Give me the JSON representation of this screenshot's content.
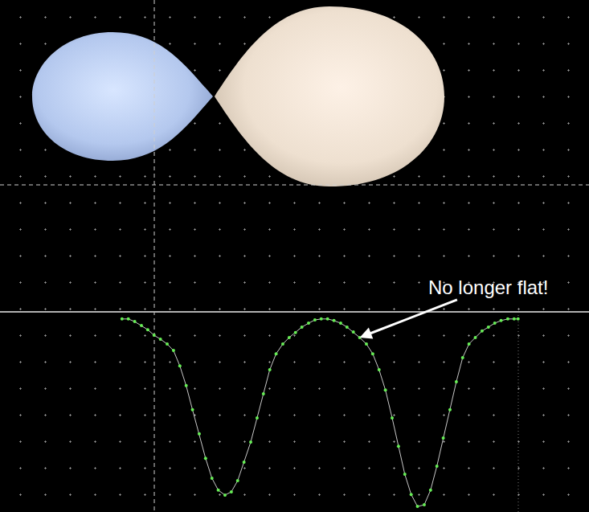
{
  "chart_data": {
    "type": "line",
    "x": [
      0,
      0.016,
      0.032,
      0.049,
      0.065,
      0.081,
      0.097,
      0.114,
      0.13,
      0.146,
      0.162,
      0.178,
      0.195,
      0.211,
      0.227,
      0.243,
      0.26,
      0.276,
      0.292,
      0.308,
      0.325,
      0.341,
      0.357,
      0.373,
      0.389,
      0.406,
      0.422,
      0.438,
      0.454,
      0.471,
      0.487,
      0.503,
      0.519,
      0.535,
      0.552,
      0.568,
      0.584,
      0.6,
      0.617,
      0.633,
      0.649,
      0.665,
      0.682,
      0.698,
      0.714,
      0.73,
      0.746,
      0.763,
      0.779,
      0.795,
      0.811,
      0.828,
      0.844,
      0.86,
      0.876,
      0.892,
      0.909,
      0.925,
      0.941,
      0.957,
      0.974,
      0.99,
      1
    ],
    "values": [
      0.593,
      0.593,
      0.585,
      0.573,
      0.56,
      0.543,
      0.531,
      0.516,
      0.496,
      0.449,
      0.388,
      0.314,
      0.24,
      0.165,
      0.104,
      0.067,
      0.052,
      0.062,
      0.096,
      0.153,
      0.215,
      0.289,
      0.363,
      0.437,
      0.486,
      0.516,
      0.536,
      0.551,
      0.568,
      0.58,
      0.59,
      0.593,
      0.593,
      0.588,
      0.58,
      0.568,
      0.553,
      0.536,
      0.516,
      0.486,
      0.437,
      0.375,
      0.289,
      0.202,
      0.116,
      0.054,
      0.017,
      0.022,
      0.067,
      0.141,
      0.227,
      0.314,
      0.4,
      0.474,
      0.516,
      0.536,
      0.556,
      0.568,
      0.58,
      0.588,
      0.593,
      0.593,
      0.593
    ],
    "xlim": [
      -0.308,
      1.179
    ],
    "ylim": [
      0,
      1
    ],
    "tick_labels": false,
    "color": "#66ee55",
    "marker": "circle",
    "line_style": "solid",
    "annotations": [
      {
        "text": "No longer flat!",
        "x": 0.6,
        "y": 0.536
      }
    ]
  }
}
